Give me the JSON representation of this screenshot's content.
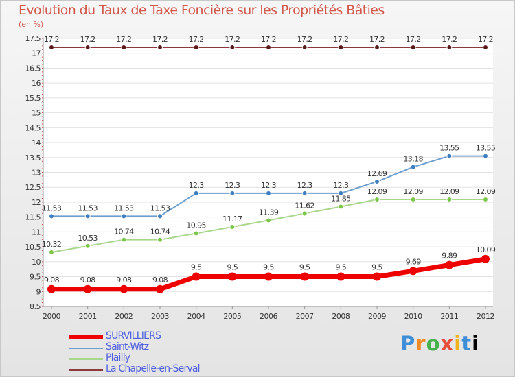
{
  "title": "Evolution du Taux de Taxe Foncière sur les Propriétés Bâties",
  "unit_label": "(en %)",
  "brand": [
    "P",
    "r",
    "o",
    "x",
    "i",
    "t",
    "i"
  ],
  "chart_data": {
    "type": "line",
    "title": "Evolution du Taux de Taxe Foncière sur les Propriétés Bâties",
    "ylabel": "(en %)",
    "xlabel": "",
    "categories": [
      "2000",
      "2001",
      "2002",
      "2003",
      "2004",
      "2005",
      "2006",
      "2007",
      "2008",
      "2009",
      "2010",
      "2011",
      "2012"
    ],
    "ylim": [
      8.5,
      17.5
    ],
    "yticks": [
      "8.5",
      "9",
      "9.5",
      "10",
      "10.5",
      "11",
      "11.5",
      "12",
      "12.5",
      "13",
      "13.5",
      "14",
      "14.5",
      "15",
      "15.5",
      "16",
      "16.5",
      "17",
      "17.5"
    ],
    "legend_position": "bottom",
    "series": [
      {
        "name": "SURVILLIERS",
        "color": "#ee0000",
        "values": [
          9.08,
          9.08,
          9.08,
          9.08,
          9.5,
          9.5,
          9.5,
          9.5,
          9.5,
          9.5,
          9.69,
          9.89,
          10.09
        ],
        "labels": [
          "9.08",
          "9.08",
          "9.08",
          "9.08",
          "9.5",
          "9.5",
          "9.5",
          "9.5",
          "9.5",
          "9.5",
          "9.69",
          "9.89",
          "10.09"
        ]
      },
      {
        "name": "Saint-Witz",
        "color": "#6c9fcf",
        "marker": "#3f7fc0",
        "values": [
          11.53,
          11.53,
          11.53,
          11.53,
          12.3,
          12.3,
          12.3,
          12.3,
          12.3,
          12.69,
          13.18,
          13.55,
          13.55
        ],
        "labels": [
          "11.53",
          "11.53",
          "11.53",
          "11.53",
          "12.3",
          "12.3",
          "12.3",
          "12.3",
          "12.3",
          "12.69",
          "13.18",
          "13.55",
          "13.55"
        ]
      },
      {
        "name": "Plailly",
        "color": "#a8d68a",
        "marker": "#7cc64a",
        "values": [
          10.32,
          10.53,
          10.74,
          10.74,
          10.95,
          11.17,
          11.39,
          11.62,
          11.85,
          12.09,
          12.09,
          12.09,
          12.09
        ],
        "labels": [
          "10.32",
          "10.53",
          "10.74",
          "10.74",
          "10.95",
          "11.17",
          "11.39",
          "11.62",
          "11.85",
          "12.09",
          "12.09",
          "12.09",
          "12.09"
        ]
      },
      {
        "name": "La Chapelle-en-Serval",
        "color": "#8a3a3a",
        "marker": "#5a1a1a",
        "values": [
          17.2,
          17.2,
          17.2,
          17.2,
          17.2,
          17.2,
          17.2,
          17.2,
          17.2,
          17.2,
          17.2,
          17.2,
          17.2
        ],
        "labels": [
          "17.2",
          "17.2",
          "17.2",
          "17.2",
          "17.2",
          "17.2",
          "17.2",
          "17.2",
          "17.2",
          "17.2",
          "17.2",
          "17.2",
          "17.2"
        ]
      }
    ]
  }
}
